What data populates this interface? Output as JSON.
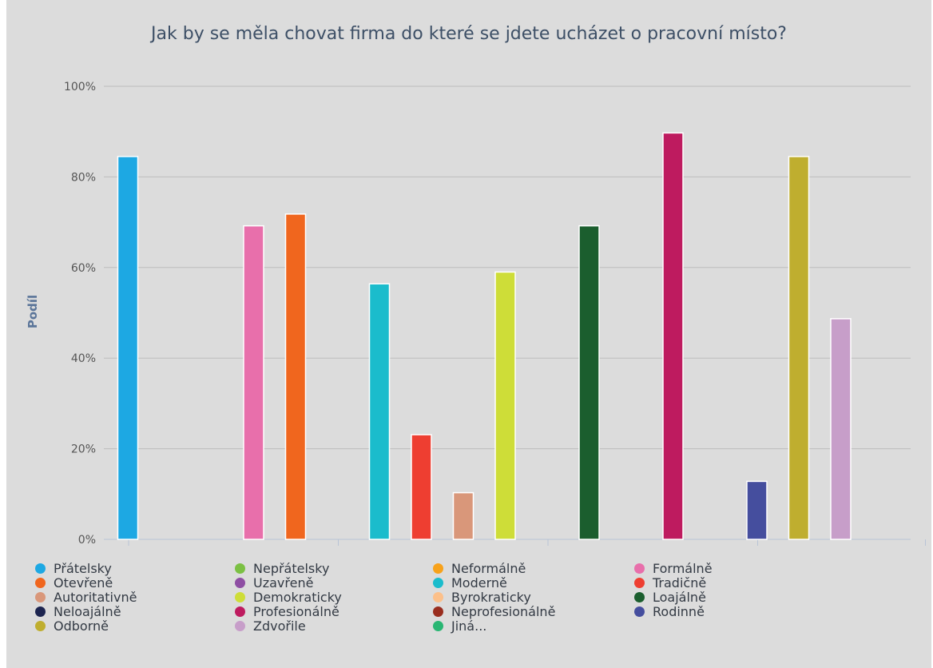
{
  "chart_data": {
    "type": "bar",
    "title": "Jak by se měla chovat firma do které se jdete ucházet o pracovní místo?",
    "ylabel": "Podíl",
    "xlabel": "",
    "ylim": [
      0,
      100
    ],
    "y_ticks": [
      0,
      20,
      40,
      60,
      80,
      100
    ],
    "y_tick_labels": [
      "0%",
      "20%",
      "40%",
      "60%",
      "80%",
      "100%"
    ],
    "grid": true,
    "legend_position": "bottom",
    "categories": [
      "Přátelsky",
      "Nepřátelsky",
      "Neformálně",
      "Formálně",
      "Otevřeně",
      "Uzavřeně",
      "Moderně",
      "Tradičně",
      "Autoritativně",
      "Demokraticky",
      "Byrokraticky",
      "Loajálně",
      "Neloajálně",
      "Profesionálně",
      "Neprofesionálně",
      "Rodinně",
      "Odborně",
      "Zdvořile",
      "Jiná..."
    ],
    "values": [
      84.5,
      0,
      0,
      69.2,
      71.8,
      0,
      56.4,
      23.1,
      10.3,
      59.0,
      0,
      69.2,
      0,
      89.7,
      0,
      12.8,
      84.5,
      48.7,
      0
    ],
    "colors": [
      "#1da8e3",
      "#7bc043",
      "#f7a21b",
      "#e86fab",
      "#f0661e",
      "#8e4ea3",
      "#1bbccc",
      "#ee3e31",
      "#d9977a",
      "#cedd38",
      "#fcc08a",
      "#1b5e2e",
      "#1d2550",
      "#be1b5f",
      "#992d1e",
      "#454e9e",
      "#bfae2f",
      "#c79ec9",
      "#2ab673"
    ]
  }
}
